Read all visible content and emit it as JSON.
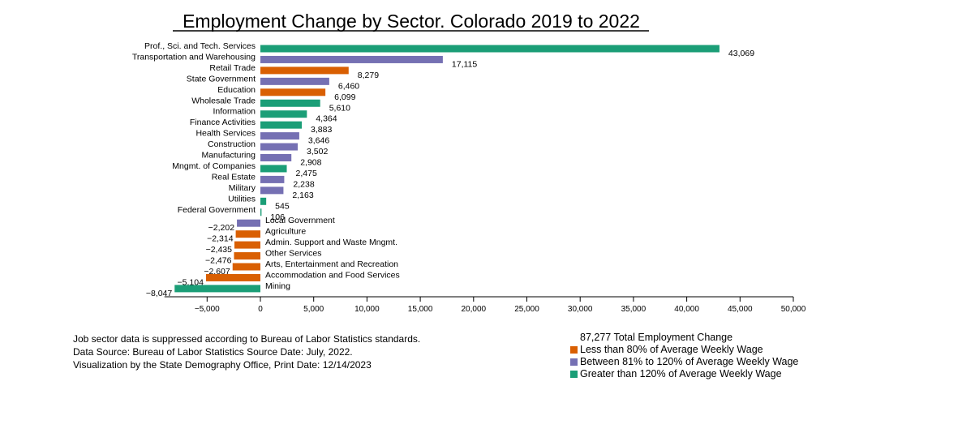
{
  "chart_data": {
    "type": "bar",
    "orientation": "horizontal",
    "title": "Employment Change by Sector. Colorado 2019 to 2022",
    "xlim": [
      -9000,
      50000
    ],
    "x_ticks": [
      -5000,
      0,
      5000,
      10000,
      15000,
      20000,
      25000,
      30000,
      35000,
      40000,
      45000,
      50000
    ],
    "x_tick_labels": [
      "−5,000",
      "0",
      "5,000",
      "10,000",
      "15,000",
      "20,000",
      "25,000",
      "30,000",
      "35,000",
      "40,000",
      "45,000",
      "50,000"
    ],
    "colors": {
      "low": "#d95f02",
      "mid": "#7570b3",
      "high": "#1b9e77"
    },
    "bars": [
      {
        "sector": "Prof., Sci. and Tech. Services",
        "value": 43069,
        "label": "43,069",
        "wage": "high"
      },
      {
        "sector": "Transportation and Warehousing",
        "value": 17115,
        "label": "17,115",
        "wage": "mid"
      },
      {
        "sector": "Retail Trade",
        "value": 8279,
        "label": "8,279",
        "wage": "low"
      },
      {
        "sector": "State Government",
        "value": 6460,
        "label": "6,460",
        "wage": "mid"
      },
      {
        "sector": "Education",
        "value": 6099,
        "label": "6,099",
        "wage": "low"
      },
      {
        "sector": "Wholesale Trade",
        "value": 5610,
        "label": "5,610",
        "wage": "high"
      },
      {
        "sector": "Information",
        "value": 4364,
        "label": "4,364",
        "wage": "high"
      },
      {
        "sector": "Finance Activities",
        "value": 3883,
        "label": "3,883",
        "wage": "high"
      },
      {
        "sector": "Health Services",
        "value": 3646,
        "label": "3,646",
        "wage": "mid"
      },
      {
        "sector": "Construction",
        "value": 3502,
        "label": "3,502",
        "wage": "mid"
      },
      {
        "sector": "Manufacturing",
        "value": 2908,
        "label": "2,908",
        "wage": "mid"
      },
      {
        "sector": "Mngmt. of Companies",
        "value": 2475,
        "label": "2,475",
        "wage": "high"
      },
      {
        "sector": "Real Estate",
        "value": 2238,
        "label": "2,238",
        "wage": "mid"
      },
      {
        "sector": "Military",
        "value": 2163,
        "label": "2,163",
        "wage": "mid"
      },
      {
        "sector": "Utilities",
        "value": 545,
        "label": "545",
        "wage": "high"
      },
      {
        "sector": "Federal Government",
        "value": 106,
        "label": "106",
        "wage": "high"
      },
      {
        "sector": "Local Government",
        "value": -2202,
        "label": "−2,202",
        "wage": "mid"
      },
      {
        "sector": "Agriculture",
        "value": -2314,
        "label": "−2,314",
        "wage": "low"
      },
      {
        "sector": "Admin. Support and Waste Mngmt.",
        "value": -2435,
        "label": "−2,435",
        "wage": "low"
      },
      {
        "sector": "Other Services",
        "value": -2476,
        "label": "−2,476",
        "wage": "low"
      },
      {
        "sector": "Arts, Entertainment and Recreation",
        "value": -2607,
        "label": "−2,607",
        "wage": "low"
      },
      {
        "sector": "Accommodation and Food Services",
        "value": -5104,
        "label": "−5,104",
        "wage": "low"
      },
      {
        "sector": "Mining",
        "value": -8047,
        "label": "−8,047",
        "wage": "high"
      }
    ]
  },
  "footnotes": [
    "Job sector data is suppressed according to Bureau of Labor Statistics standards.",
    "Data Source: Bureau of Labor Statistics Source Date: July, 2022.",
    "Visualization by the State Demography Office, Print Date: 12/14/2023"
  ],
  "legend": {
    "total": "87,277 Total Employment Change",
    "items": [
      {
        "label": "Less than 80% of Average Weekly Wage",
        "color": "#d95f02"
      },
      {
        "label": "Between 81% to 120% of Average Weekly Wage",
        "color": "#7570b3"
      },
      {
        "label": "Greater than 120% of Average Weekly Wage",
        "color": "#1b9e77"
      }
    ]
  }
}
